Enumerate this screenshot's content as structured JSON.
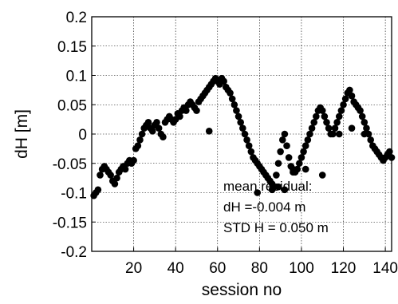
{
  "chart_data": {
    "type": "scatter",
    "title": "",
    "xlabel": "session no",
    "ylabel": "dH [m]",
    "xlim": [
      0,
      143
    ],
    "ylim": [
      -0.2,
      0.2
    ],
    "grid": true,
    "marker_color": "#000000",
    "x_tick_labels": [
      "20",
      "40",
      "60",
      "80",
      "100",
      "120",
      "140"
    ],
    "y_tick_labels": [
      "0.2",
      "0.15",
      "0.1",
      "0.05",
      "0",
      "-0.05",
      "-0.1",
      "-0.15",
      "-0.2"
    ],
    "annotation": {
      "line1": "mean residual:",
      "line2": "dH =-0.004 m",
      "line3": "STD H = 0.050 m"
    },
    "x": [
      1,
      2,
      3,
      4,
      5,
      6,
      7,
      8,
      9,
      10,
      11,
      12,
      13,
      14,
      15,
      16,
      17,
      18,
      19,
      20,
      21,
      22,
      23,
      24,
      25,
      26,
      27,
      28,
      29,
      30,
      31,
      32,
      33,
      34,
      35,
      36,
      37,
      38,
      39,
      40,
      41,
      42,
      43,
      44,
      45,
      46,
      47,
      48,
      49,
      50,
      51,
      52,
      53,
      54,
      55,
      56,
      57,
      58,
      59,
      60,
      61,
      62,
      63,
      64,
      65,
      66,
      67,
      68,
      69,
      70,
      71,
      72,
      73,
      74,
      75,
      76,
      77,
      78,
      79,
      80,
      81,
      82,
      83,
      84,
      85,
      86,
      87,
      88,
      89,
      90,
      91,
      92,
      93,
      94,
      95,
      96,
      97,
      98,
      99,
      100,
      101,
      102,
      103,
      104,
      105,
      106,
      107,
      108,
      109,
      110,
      111,
      112,
      113,
      114,
      115,
      116,
      117,
      118,
      119,
      120,
      121,
      122,
      123,
      124,
      125,
      126,
      127,
      128,
      129,
      130,
      131,
      132,
      133,
      134,
      135,
      136,
      137,
      138,
      139,
      140,
      141,
      142,
      143,
      56,
      79,
      86,
      89,
      92,
      96,
      102,
      110,
      118,
      124,
      130
    ],
    "y": [
      -0.105,
      -0.1,
      -0.095,
      -0.07,
      -0.06,
      -0.055,
      -0.06,
      -0.065,
      -0.07,
      -0.08,
      -0.085,
      -0.075,
      -0.065,
      -0.06,
      -0.055,
      -0.06,
      -0.05,
      -0.045,
      -0.05,
      -0.045,
      -0.025,
      -0.02,
      -0.01,
      0.0,
      0.01,
      0.015,
      0.02,
      0.01,
      0.005,
      0.015,
      0.02,
      0.01,
      0.0,
      -0.005,
      0.02,
      0.025,
      0.03,
      0.025,
      0.02,
      0.025,
      0.035,
      0.03,
      0.04,
      0.045,
      0.04,
      0.05,
      0.055,
      0.05,
      0.045,
      0.04,
      0.055,
      0.06,
      0.065,
      0.07,
      0.075,
      0.08,
      0.085,
      0.09,
      0.095,
      0.09,
      0.085,
      0.095,
      0.09,
      0.08,
      0.075,
      0.07,
      0.06,
      0.05,
      0.04,
      0.03,
      0.02,
      0.01,
      0.0,
      -0.01,
      -0.02,
      -0.03,
      -0.04,
      -0.045,
      -0.05,
      -0.055,
      -0.06,
      -0.065,
      -0.07,
      -0.075,
      -0.08,
      -0.085,
      -0.09,
      -0.07,
      -0.05,
      -0.03,
      -0.01,
      0.0,
      -0.02,
      -0.04,
      -0.055,
      -0.06,
      -0.065,
      -0.06,
      -0.05,
      -0.04,
      -0.03,
      -0.02,
      -0.01,
      0.0,
      0.01,
      0.02,
      0.03,
      0.04,
      0.045,
      0.04,
      0.03,
      0.02,
      0.01,
      0.0,
      0.0,
      0.01,
      0.02,
      0.03,
      0.04,
      0.05,
      0.06,
      0.07,
      0.075,
      0.065,
      0.055,
      0.05,
      0.045,
      0.04,
      0.03,
      0.02,
      0.01,
      0.0,
      -0.01,
      -0.02,
      -0.025,
      -0.03,
      -0.035,
      -0.04,
      -0.045,
      -0.04,
      -0.035,
      -0.03,
      -0.04,
      0.005,
      -0.1,
      -0.095,
      -0.09,
      -0.095,
      -0.065,
      -0.06,
      -0.07,
      0.0,
      0.01,
      0.0
    ]
  }
}
